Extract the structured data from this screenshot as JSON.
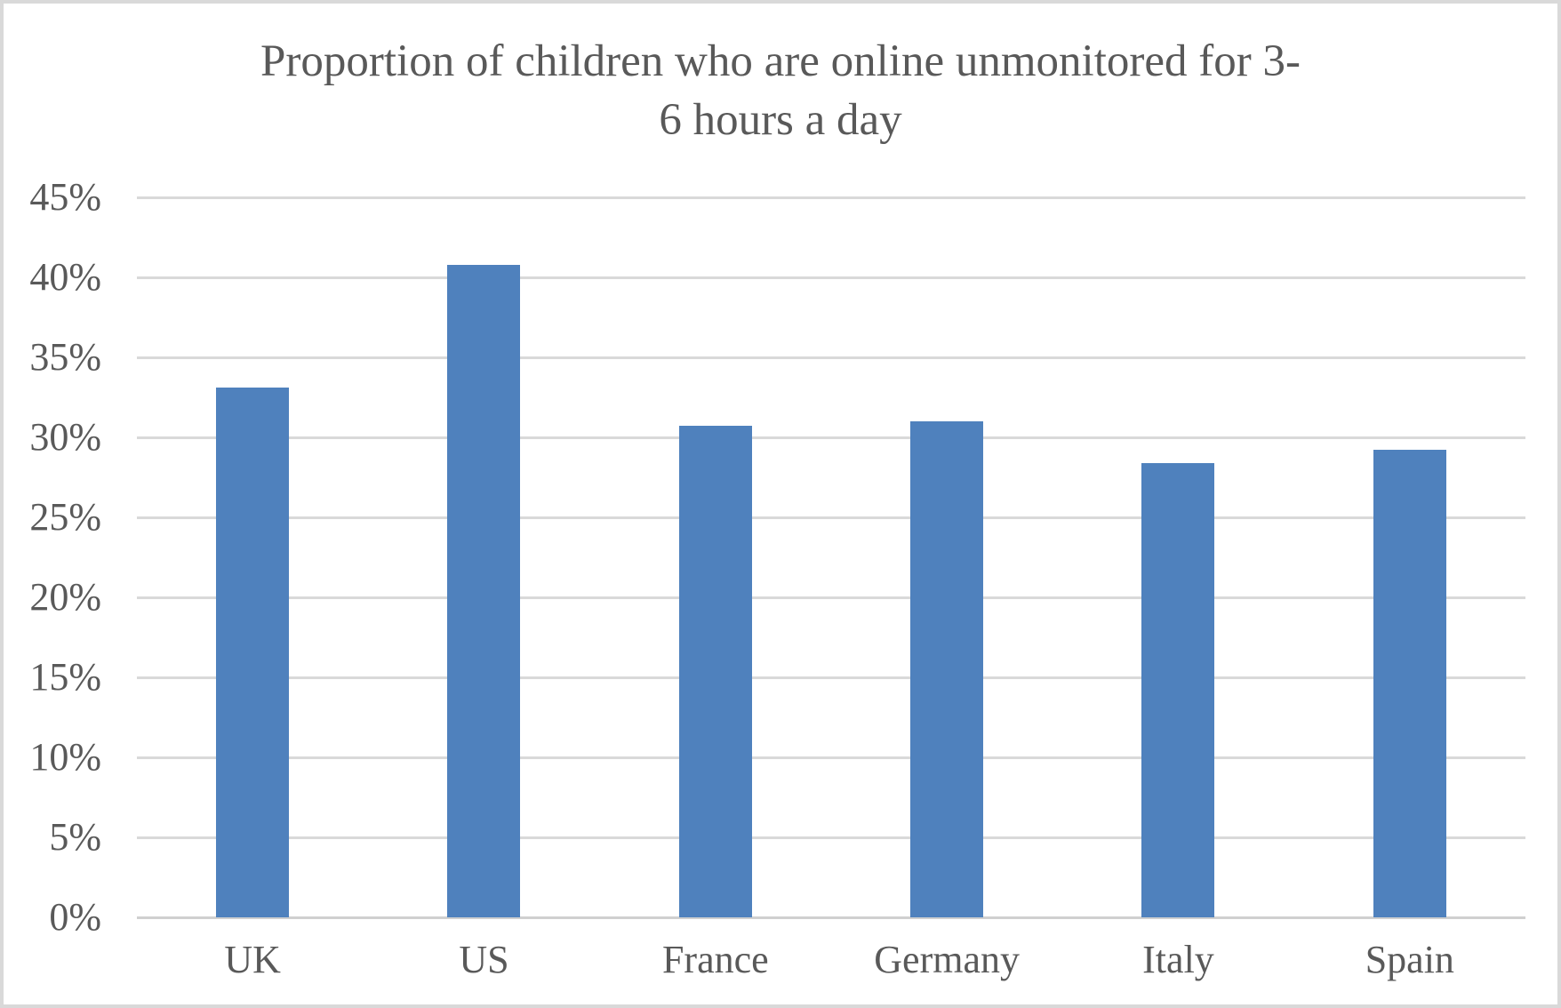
{
  "frame": {
    "background": "#ffffff",
    "border_color": "#d9d9d9"
  },
  "chart_data": {
    "type": "bar",
    "title": "Proportion of children who are online unmonitored for 3-6 hours a day",
    "title_lines": [
      "Proportion of children who are online unmonitored for 3-",
      "6 hours a day"
    ],
    "categories": [
      "UK",
      "US",
      "France",
      "Germany",
      "Italy",
      "Spain"
    ],
    "values": [
      33.1,
      40.8,
      30.7,
      31.0,
      28.4,
      29.2
    ],
    "unit": "%",
    "xlabel": "",
    "ylabel": "",
    "ylim": [
      0,
      45
    ],
    "ytick_step": 5,
    "ytick_labels": [
      "0%",
      "5%",
      "10%",
      "15%",
      "20%",
      "25%",
      "30%",
      "35%",
      "40%",
      "45%"
    ],
    "grid": "horizontal-only",
    "legend": "none",
    "colors": {
      "bar_fill": "#4f81bd",
      "gridline": "#d9d9d9",
      "axis_line": "#d0d0d0",
      "text": "#595959"
    }
  }
}
